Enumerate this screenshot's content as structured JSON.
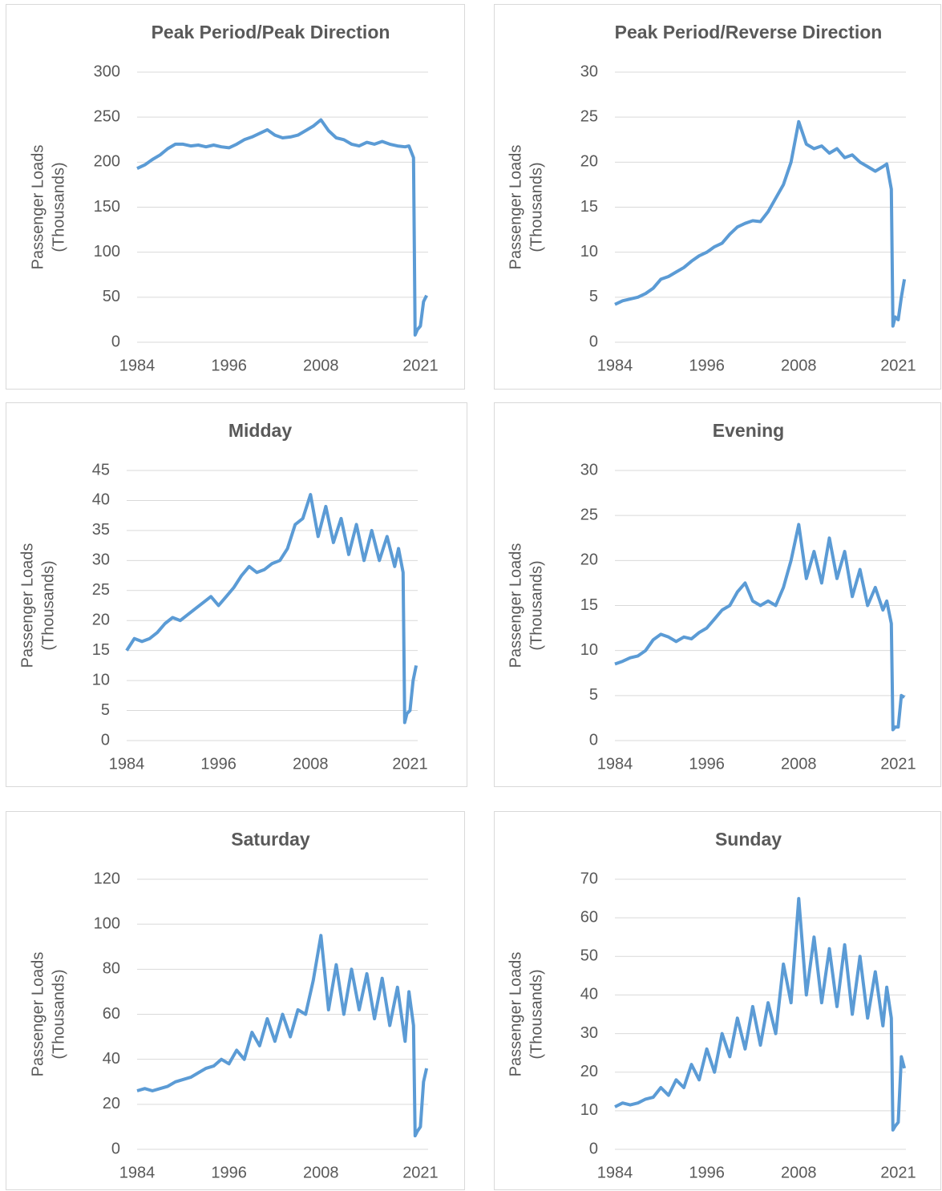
{
  "chart_data": [
    {
      "type": "line",
      "title": "Peak Period/Peak Direction",
      "y_label": [
        "Passenger Loads",
        "(Thousands)"
      ],
      "color": "#5b9bd5",
      "grid": true,
      "xlim": [
        1984,
        2022
      ],
      "xticks": [
        1984,
        1996,
        2008,
        2021
      ],
      "ylim": [
        0,
        300
      ],
      "yticks": [
        0,
        50,
        100,
        150,
        200,
        250,
        300
      ],
      "x": [
        1984,
        1985,
        1986,
        1987,
        1988,
        1989,
        1990,
        1991,
        1992,
        1993,
        1994,
        1995,
        1996,
        1997,
        1998,
        1999,
        2000,
        2001,
        2002,
        2003,
        2004,
        2005,
        2006,
        2007,
        2008,
        2009,
        2010,
        2011,
        2012,
        2013,
        2014,
        2015,
        2016,
        2017,
        2018,
        2019,
        2019.5,
        2020.1,
        2020.3,
        2020.6,
        2021,
        2021.4,
        2021.8
      ],
      "values": [
        193,
        197,
        203,
        208,
        215,
        220,
        220,
        218,
        219,
        217,
        219,
        217,
        216,
        220,
        225,
        228,
        232,
        236,
        230,
        227,
        228,
        230,
        235,
        240,
        247,
        235,
        227,
        225,
        220,
        218,
        222,
        220,
        223,
        220,
        218,
        217,
        218,
        205,
        8,
        14,
        18,
        45,
        52
      ]
    },
    {
      "type": "line",
      "title": "Peak Period/Reverse Direction",
      "y_label": [
        "Passenger Loads",
        "(Thousands)"
      ],
      "color": "#5b9bd5",
      "grid": true,
      "xlim": [
        1984,
        2022
      ],
      "xticks": [
        1984,
        1996,
        2008,
        2021
      ],
      "ylim": [
        0,
        30
      ],
      "yticks": [
        0,
        5,
        10,
        15,
        20,
        25,
        30
      ],
      "x": [
        1984,
        1985,
        1986,
        1987,
        1988,
        1989,
        1990,
        1991,
        1992,
        1993,
        1994,
        1995,
        1996,
        1997,
        1998,
        1999,
        2000,
        2001,
        2002,
        2003,
        2004,
        2005,
        2006,
        2007,
        2008,
        2009,
        2010,
        2011,
        2012,
        2013,
        2014,
        2015,
        2016,
        2017,
        2018,
        2019,
        2019.5,
        2020.1,
        2020.3,
        2020.6,
        2021,
        2021.4,
        2021.8
      ],
      "values": [
        4.2,
        4.6,
        4.8,
        5.0,
        5.4,
        6.0,
        7.0,
        7.3,
        7.8,
        8.3,
        9.0,
        9.6,
        10.0,
        10.6,
        11.0,
        12.0,
        12.8,
        13.2,
        13.5,
        13.4,
        14.5,
        16,
        17.5,
        20,
        24.5,
        22,
        21.5,
        21.8,
        21,
        21.5,
        20.5,
        20.8,
        20,
        19.5,
        19,
        19.5,
        19.8,
        17,
        1.8,
        2.8,
        2.5,
        5,
        7
      ]
    },
    {
      "type": "line",
      "title": "Midday",
      "y_label": [
        "Passenger Loads",
        "(Thousands)"
      ],
      "color": "#5b9bd5",
      "grid": true,
      "xlim": [
        1984,
        2022
      ],
      "xticks": [
        1984,
        1996,
        2008,
        2021
      ],
      "ylim": [
        0,
        45
      ],
      "yticks": [
        0,
        5,
        10,
        15,
        20,
        25,
        30,
        35,
        40,
        45
      ],
      "x": [
        1984,
        1985,
        1986,
        1987,
        1988,
        1989,
        1990,
        1991,
        1992,
        1993,
        1994,
        1995,
        1996,
        1997,
        1998,
        1999,
        2000,
        2001,
        2002,
        2003,
        2004,
        2005,
        2006,
        2007,
        2008,
        2009,
        2010,
        2011,
        2012,
        2013,
        2014,
        2015,
        2016,
        2017,
        2018,
        2019,
        2019.5,
        2020.1,
        2020.3,
        2020.6,
        2021,
        2021.4,
        2021.8
      ],
      "values": [
        15,
        17,
        16.5,
        17,
        18,
        19.5,
        20.5,
        20,
        21,
        22,
        23,
        24,
        22.5,
        24,
        25.5,
        27.5,
        29,
        28,
        28.5,
        29.5,
        30,
        32,
        36,
        37,
        41,
        34,
        39,
        33,
        37,
        31,
        36,
        30,
        35,
        30,
        34,
        29,
        32,
        28,
        3,
        4.5,
        5,
        10,
        12.5
      ]
    },
    {
      "type": "line",
      "title": "Evening",
      "y_label": [
        "Passenger Loads",
        "(Thousands)"
      ],
      "color": "#5b9bd5",
      "grid": true,
      "xlim": [
        1984,
        2022
      ],
      "xticks": [
        1984,
        1996,
        2008,
        2021
      ],
      "ylim": [
        0,
        30
      ],
      "yticks": [
        0,
        5,
        10,
        15,
        20,
        25,
        30
      ],
      "x": [
        1984,
        1985,
        1986,
        1987,
        1988,
        1989,
        1990,
        1991,
        1992,
        1993,
        1994,
        1995,
        1996,
        1997,
        1998,
        1999,
        2000,
        2001,
        2002,
        2003,
        2004,
        2005,
        2006,
        2007,
        2008,
        2009,
        2010,
        2011,
        2012,
        2013,
        2014,
        2015,
        2016,
        2017,
        2018,
        2019,
        2019.5,
        2020.1,
        2020.3,
        2020.6,
        2021,
        2021.4,
        2021.8
      ],
      "values": [
        8.5,
        8.8,
        9.2,
        9.4,
        10,
        11.2,
        11.8,
        11.5,
        11,
        11.5,
        11.3,
        12,
        12.5,
        13.5,
        14.5,
        15,
        16.5,
        17.5,
        15.5,
        15,
        15.5,
        15,
        17,
        20,
        24,
        18,
        21,
        17.5,
        22.5,
        18,
        21,
        16,
        19,
        15,
        17,
        14.5,
        15.5,
        13,
        1.2,
        1.5,
        1.5,
        5,
        4.8
      ]
    },
    {
      "type": "line",
      "title": "Saturday",
      "y_label": [
        "Passenger Loads",
        "(Thousands)"
      ],
      "color": "#5b9bd5",
      "grid": true,
      "xlim": [
        1984,
        2022
      ],
      "xticks": [
        1984,
        1996,
        2008,
        2021
      ],
      "ylim": [
        0,
        120
      ],
      "yticks": [
        0,
        20,
        40,
        60,
        80,
        100,
        120
      ],
      "x": [
        1984,
        1985,
        1986,
        1987,
        1988,
        1989,
        1990,
        1991,
        1992,
        1993,
        1994,
        1995,
        1996,
        1997,
        1998,
        1999,
        2000,
        2001,
        2002,
        2003,
        2004,
        2005,
        2006,
        2007,
        2008,
        2009,
        2010,
        2011,
        2012,
        2013,
        2014,
        2015,
        2016,
        2017,
        2018,
        2019,
        2019.5,
        2020.1,
        2020.3,
        2020.6,
        2021,
        2021.4,
        2021.8
      ],
      "values": [
        26,
        27,
        26,
        27,
        28,
        30,
        31,
        32,
        34,
        36,
        37,
        40,
        38,
        44,
        40,
        52,
        46,
        58,
        48,
        60,
        50,
        62,
        60,
        75,
        95,
        62,
        82,
        60,
        80,
        62,
        78,
        58,
        76,
        55,
        72,
        48,
        70,
        55,
        6,
        8,
        10,
        30,
        36
      ]
    },
    {
      "type": "line",
      "title": "Sunday",
      "y_label": [
        "Passenger Loads",
        "(Thousands)"
      ],
      "color": "#5b9bd5",
      "grid": true,
      "xlim": [
        1984,
        2022
      ],
      "xticks": [
        1984,
        1996,
        2008,
        2021
      ],
      "ylim": [
        0,
        70
      ],
      "yticks": [
        0,
        10,
        20,
        30,
        40,
        50,
        60,
        70
      ],
      "x": [
        1984,
        1985,
        1986,
        1987,
        1988,
        1989,
        1990,
        1991,
        1992,
        1993,
        1994,
        1995,
        1996,
        1997,
        1998,
        1999,
        2000,
        2001,
        2002,
        2003,
        2004,
        2005,
        2006,
        2007,
        2008,
        2009,
        2010,
        2011,
        2012,
        2013,
        2014,
        2015,
        2016,
        2017,
        2018,
        2019,
        2019.5,
        2020.1,
        2020.3,
        2020.6,
        2021,
        2021.4,
        2021.8
      ],
      "values": [
        11,
        12,
        11.5,
        12,
        13,
        13.5,
        16,
        14,
        18,
        16,
        22,
        18,
        26,
        20,
        30,
        24,
        34,
        26,
        37,
        27,
        38,
        30,
        48,
        38,
        65,
        40,
        55,
        38,
        52,
        37,
        53,
        35,
        50,
        34,
        46,
        32,
        42,
        34,
        5,
        6,
        7,
        24,
        21
      ]
    }
  ]
}
